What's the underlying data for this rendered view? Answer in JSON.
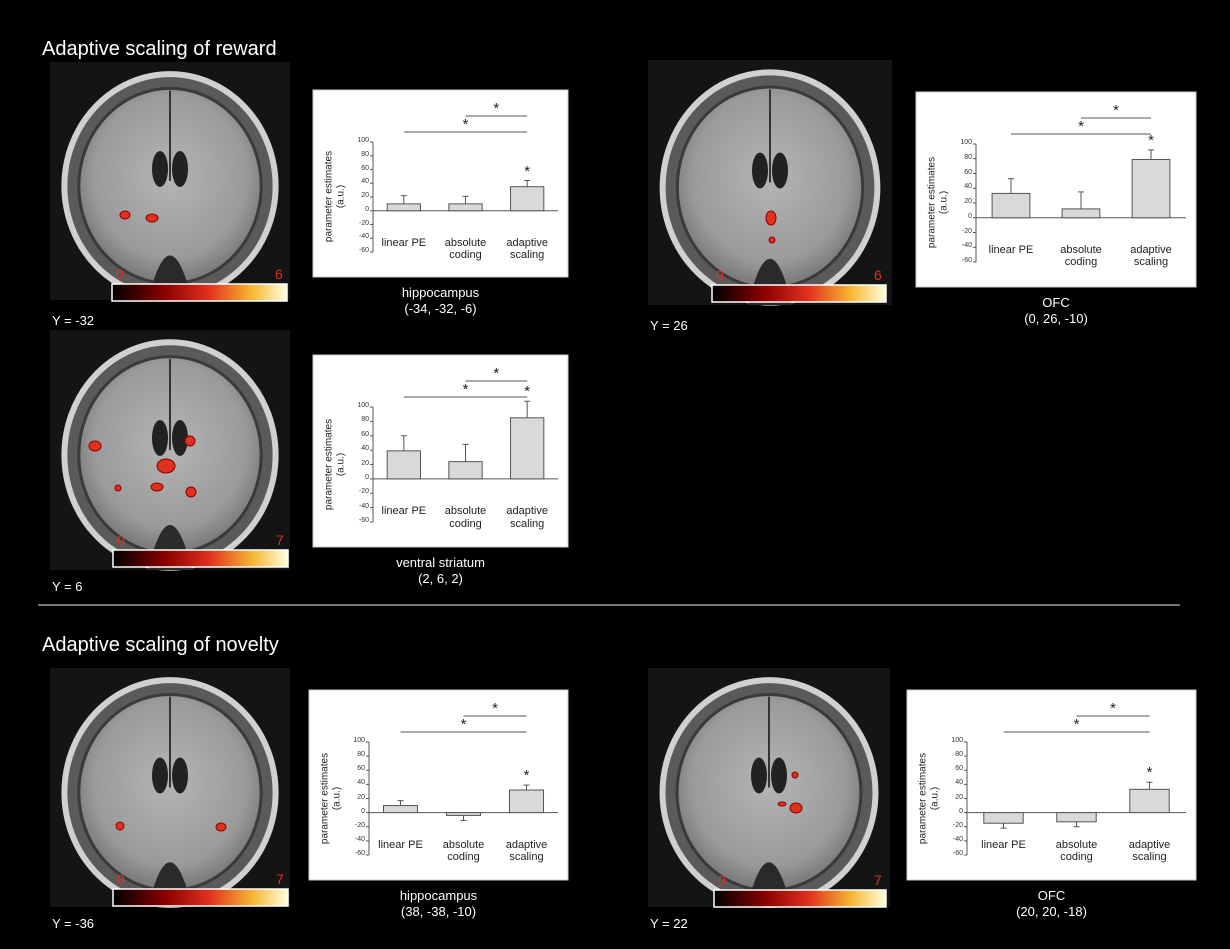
{
  "headings": [
    "Adaptive scaling of reward",
    "Adaptive scaling of novelty"
  ],
  "panels": [
    {
      "slice": "Y = -32",
      "colorbar_min": "0",
      "colorbar_max": "6"
    },
    {
      "slice": "Y = 26",
      "colorbar_min": "0",
      "colorbar_max": "6"
    },
    {
      "slice": "Y = 6",
      "colorbar_min": "0",
      "colorbar_max": "7"
    },
    {
      "slice": "Y = -36",
      "colorbar_min": "0",
      "colorbar_max": "7"
    },
    {
      "slice": "Y = 22",
      "colorbar_min": "0",
      "colorbar_max": "7"
    }
  ],
  "chart_data": [
    {
      "type": "bar",
      "ylabel": "parameter estimates (a.u.)",
      "categories": [
        "linear PE",
        "absolute coding",
        "adaptive scaling"
      ],
      "values": [
        10,
        10,
        35
      ],
      "errors": [
        12,
        11,
        9
      ],
      "color": "#d9d9d9",
      "ylim": [
        -60,
        100
      ],
      "yticks": [
        -60,
        -40,
        -20,
        0,
        20,
        40,
        60,
        80,
        100
      ],
      "significance": "*",
      "region": "hippocampus",
      "coords": "(-34, -32, -6)"
    },
    {
      "type": "bar",
      "ylabel": "parameter estimates (a.u.)",
      "categories": [
        "linear PE",
        "absolute coding",
        "adaptive scaling"
      ],
      "values": [
        33,
        12,
        79
      ],
      "errors": [
        20,
        23,
        13
      ],
      "color": "#d9d9d9",
      "ylim": [
        -60,
        100
      ],
      "yticks": [
        -60,
        -40,
        -20,
        0,
        20,
        40,
        60,
        80,
        100
      ],
      "significance": "*",
      "region": "OFC",
      "coords": "(0, 26, -10)"
    },
    {
      "type": "bar",
      "ylabel": "parameter estimates (a.u.)",
      "categories": [
        "linear PE",
        "absolute coding",
        "adaptive scaling"
      ],
      "values": [
        39,
        24,
        85
      ],
      "errors": [
        21,
        24,
        23
      ],
      "color": "#d9d9d9",
      "ylim": [
        -60,
        100
      ],
      "yticks": [
        -60,
        -40,
        -20,
        0,
        20,
        40,
        60,
        80,
        100
      ],
      "significance": "*",
      "region": "ventral striatum",
      "coords": "(2, 6, 2)"
    },
    {
      "type": "bar",
      "ylabel": "parameter estimates (a.u.)",
      "categories": [
        "linear PE",
        "absolute coding",
        "adaptive scaling"
      ],
      "values": [
        10,
        -4,
        32
      ],
      "errors": [
        7,
        7,
        7
      ],
      "color": "#d9d9d9",
      "ylim": [
        -60,
        100
      ],
      "yticks": [
        -60,
        -40,
        -20,
        0,
        20,
        40,
        60,
        80,
        100
      ],
      "significance": "*",
      "region": "hippocampus",
      "coords": "(38, -38, -10)"
    },
    {
      "type": "bar",
      "ylabel": "parameter estimates (a.u.)",
      "categories": [
        "linear PE",
        "absolute coding",
        "adaptive scaling"
      ],
      "values": [
        -15,
        -13,
        33
      ],
      "errors": [
        7,
        7,
        10
      ],
      "color": "#d9d9d9",
      "ylim": [
        -60,
        100
      ],
      "yticks": [
        -60,
        -40,
        -20,
        0,
        20,
        40,
        60,
        80,
        100
      ],
      "significance": "*",
      "region": "OFC",
      "coords": "(20, 20, -18)"
    }
  ]
}
